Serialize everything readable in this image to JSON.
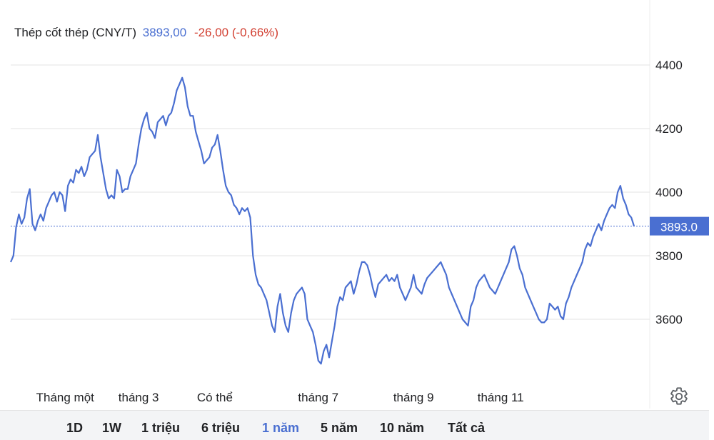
{
  "header": {
    "name": "Thép cốt thép (CNY/T)",
    "price": "3893,00",
    "change": "-26,00 (-0,66%)"
  },
  "toolbar": {
    "ranges": [
      {
        "label": "1D",
        "active": false
      },
      {
        "label": "1W",
        "active": false
      },
      {
        "label": "1 triệu",
        "active": false
      },
      {
        "label": "6 triệu",
        "active": false
      },
      {
        "label": "1 năm",
        "active": true
      },
      {
        "label": "5 năm",
        "active": false
      },
      {
        "label": "10 năm",
        "active": false
      },
      {
        "label": "Tất cả",
        "active": false
      }
    ]
  },
  "settings": {
    "icon": "gear-icon"
  },
  "colors": {
    "line": "#4a6fd1",
    "badge": "#4a6fd1",
    "change": "#d23f31",
    "grid": "#e3e3e3"
  },
  "chart_data": {
    "type": "line",
    "title": "Thép cốt thép (CNY/T)",
    "ylim": [
      3400,
      4400
    ],
    "y_ticks": [
      4400,
      4200,
      4000,
      3800,
      3600
    ],
    "x_tick_labels": [
      "Tháng một",
      "tháng 3",
      "Có thể",
      "tháng 7",
      "tháng 9",
      "tháng 11"
    ],
    "x_tick_index": [
      20,
      47,
      75,
      113,
      148,
      180
    ],
    "current_value": 3893,
    "current_label": "3893.0",
    "grid": true,
    "series": [
      {
        "values": [
          3780,
          3800,
          3890,
          3930,
          3900,
          3920,
          3980,
          4010,
          3900,
          3880,
          3910,
          3930,
          3910,
          3950,
          3970,
          3990,
          4000,
          3970,
          4000,
          3990,
          3940,
          4020,
          4040,
          4030,
          4070,
          4060,
          4080,
          4050,
          4070,
          4110,
          4120,
          4130,
          4180,
          4110,
          4060,
          4010,
          3980,
          3990,
          3980,
          4070,
          4050,
          4000,
          4010,
          4010,
          4050,
          4070,
          4090,
          4150,
          4200,
          4230,
          4250,
          4200,
          4190,
          4170,
          4220,
          4230,
          4240,
          4210,
          4240,
          4250,
          4280,
          4320,
          4340,
          4360,
          4330,
          4270,
          4240,
          4240,
          4190,
          4160,
          4130,
          4090,
          4100,
          4110,
          4140,
          4150,
          4180,
          4130,
          4070,
          4020,
          4000,
          3990,
          3960,
          3950,
          3930,
          3950,
          3940,
          3950,
          3920,
          3800,
          3740,
          3710,
          3700,
          3680,
          3660,
          3620,
          3580,
          3560,
          3640,
          3680,
          3620,
          3580,
          3560,
          3620,
          3660,
          3680,
          3690,
          3700,
          3680,
          3600,
          3580,
          3560,
          3520,
          3470,
          3460,
          3500,
          3520,
          3480,
          3530,
          3580,
          3640,
          3670,
          3660,
          3700,
          3710,
          3720,
          3680,
          3710,
          3750,
          3780,
          3780,
          3770,
          3740,
          3700,
          3670,
          3710,
          3720,
          3730,
          3740,
          3720,
          3730,
          3720,
          3740,
          3700,
          3680,
          3660,
          3680,
          3700,
          3740,
          3700,
          3690,
          3680,
          3710,
          3730,
          3740,
          3750,
          3760,
          3770,
          3780,
          3760,
          3740,
          3700,
          3680,
          3660,
          3640,
          3620,
          3600,
          3590,
          3580,
          3640,
          3660,
          3700,
          3720,
          3730,
          3740,
          3720,
          3700,
          3690,
          3680,
          3700,
          3720,
          3740,
          3760,
          3780,
          3820,
          3830,
          3800,
          3760,
          3740,
          3700,
          3680,
          3660,
          3640,
          3620,
          3600,
          3590,
          3590,
          3600,
          3650,
          3640,
          3630,
          3640,
          3610,
          3600,
          3650,
          3670,
          3700,
          3720,
          3740,
          3760,
          3780,
          3820,
          3840,
          3830,
          3860,
          3880,
          3900,
          3880,
          3910,
          3930,
          3950,
          3960,
          3950,
          4000,
          4020,
          3980,
          3960,
          3930,
          3920,
          3893
        ]
      }
    ]
  }
}
